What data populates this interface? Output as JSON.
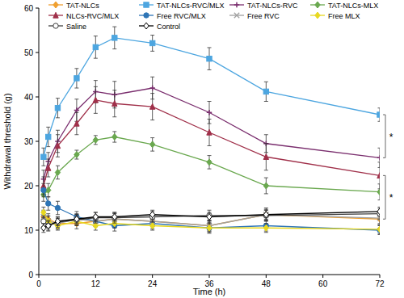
{
  "chart_data": {
    "type": "line",
    "x_label": "Time (h)",
    "y_label": "Withdrawal threshold (g)",
    "x": [
      1,
      2,
      4,
      8,
      12,
      16,
      24,
      36,
      48,
      72
    ],
    "xlim": [
      0,
      72
    ],
    "xticks": [
      0,
      12,
      24,
      36,
      48,
      60,
      72
    ],
    "ylim": [
      0,
      60
    ],
    "yticks": [
      0,
      10,
      20,
      30,
      40,
      50,
      60
    ],
    "grid": false,
    "legend": "top",
    "series": [
      {
        "name": "TAT-NLCs",
        "color": "#f0a030",
        "marker": "diamond",
        "values": [
          13,
          12.5,
          11.5,
          11.5,
          12,
          12.5,
          12,
          11,
          13.5,
          12.5
        ],
        "errors": [
          1.5,
          1.2,
          1.2,
          1.2,
          1.2,
          1.3,
          1.2,
          1.2,
          1.5,
          1.3
        ]
      },
      {
        "name": "TAT-NLCs-RVC/MLX",
        "color": "#4da6e0",
        "marker": "square",
        "values": [
          26.5,
          31,
          37.5,
          44.2,
          51.2,
          53.3,
          52.1,
          48.6,
          41.2,
          36
        ],
        "errors": [
          2,
          2.2,
          2.2,
          2.2,
          2.5,
          2.5,
          1.8,
          2.5,
          2.2,
          1.5
        ]
      },
      {
        "name": "TAT-NLCs-RVC",
        "color": "#7a2e6e",
        "marker": "cross",
        "values": [
          21.5,
          25.5,
          30,
          37,
          41.2,
          40.5,
          42,
          36.5,
          29.5,
          26.3
        ],
        "errors": [
          2,
          2,
          2.5,
          2.5,
          2.5,
          3,
          2.5,
          2.5,
          2,
          2.2
        ]
      },
      {
        "name": "TAT-NLCs-MLX",
        "color": "#6aa84f",
        "marker": "diamond",
        "values": [
          18,
          19,
          23,
          27,
          30.3,
          31,
          29.3,
          25.3,
          20,
          18.6
        ],
        "errors": [
          1.5,
          1.5,
          1.5,
          1,
          1,
          1.2,
          1.5,
          1.5,
          1.8,
          1.8
        ]
      },
      {
        "name": "NLCs-RVC/MLX",
        "color": "#a0304a",
        "marker": "triangle",
        "values": [
          20,
          24,
          29,
          34,
          39.3,
          38.5,
          37.8,
          32,
          26.5,
          22.3
        ],
        "errors": [
          2,
          2,
          2.5,
          2.5,
          3,
          3,
          3,
          3,
          3,
          3
        ]
      },
      {
        "name": "Free RVC/MLX",
        "color": "#2e75b6",
        "marker": "circle",
        "values": [
          19,
          16,
          15,
          13,
          12,
          11,
          11.5,
          10.5,
          11,
          10
        ],
        "errors": [
          1.5,
          1.5,
          1.5,
          1.2,
          1.2,
          1.2,
          1.2,
          1.2,
          1.2,
          1
        ]
      },
      {
        "name": "Free RVC",
        "color": "#a0a0a0",
        "marker": "x",
        "values": [
          13,
          12,
          11.5,
          12.5,
          12,
          12.5,
          12,
          11,
          13.5,
          12.7
        ],
        "errors": [
          1.2,
          1.2,
          1.2,
          1.2,
          1.2,
          1.2,
          1.2,
          1.2,
          1.2,
          1.2
        ]
      },
      {
        "name": "Free MLX",
        "color": "#e8d820",
        "marker": "diamond",
        "values": [
          14,
          12,
          11,
          12,
          11,
          11.5,
          11,
          10.5,
          10.5,
          10.2
        ],
        "errors": [
          1.2,
          1.2,
          1,
          1,
          1,
          1,
          1,
          1,
          1,
          1
        ]
      },
      {
        "name": "Saline",
        "color": "#404040",
        "marker": "open_circle",
        "values": [
          12,
          11,
          11.8,
          12.3,
          12.8,
          12.8,
          13,
          13.3,
          13.3,
          13.7
        ],
        "errors": [
          1.2,
          1.2,
          1.2,
          1.2,
          1.2,
          1.2,
          1.2,
          1.2,
          1.2,
          1.2
        ]
      },
      {
        "name": "Control",
        "color": "#000000",
        "marker": "open_diamond",
        "values": [
          10.5,
          11,
          12,
          12.5,
          13,
          13,
          13.5,
          13,
          13.5,
          14.2
        ],
        "errors": [
          1,
          1,
          1,
          1,
          1,
          1,
          1,
          1,
          1,
          1
        ]
      }
    ],
    "annotations": [
      {
        "text": "*",
        "y_range": [
          26.3,
          36
        ]
      },
      {
        "text": "*",
        "y_range": [
          12.5,
          22.3
        ]
      }
    ]
  }
}
